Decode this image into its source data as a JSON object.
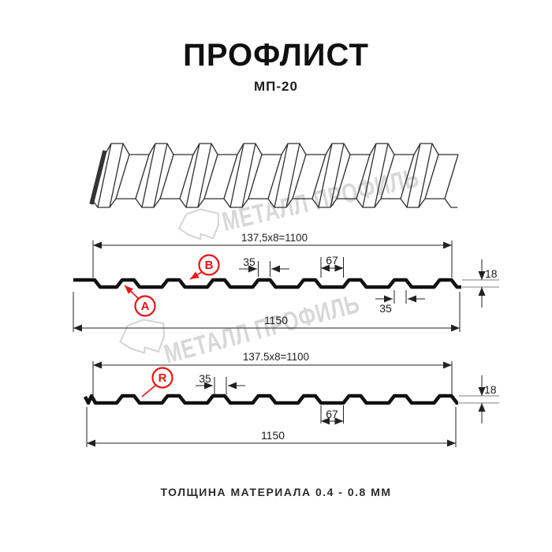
{
  "header": {
    "title": "ПРОФЛИСТ",
    "subtitle": "МП-20"
  },
  "watermark": {
    "text": "МЕТАЛЛ ПРОФИЛЬ"
  },
  "face_view": {
    "label_a": "A",
    "label_b": "B",
    "dim_modules": "137,5x8=1100",
    "dim_crest_width": "35",
    "dim_valley_width": "67",
    "dim_height": "18",
    "dim_crest_width_2": "35",
    "dim_total_width": "1150"
  },
  "reverse_view": {
    "label_r": "R",
    "dim_modules": "137.5x8=1100",
    "dim_crest_width": "35",
    "dim_valley_width": "67",
    "dim_height": "18",
    "dim_total_width": "1150"
  },
  "footer": {
    "note": "ТОЛЩИНА МАТЕРИАЛА 0.4 - 0.8 ММ"
  },
  "colors": {
    "accent_red": "#ec1313",
    "line_black": "#111111",
    "watermark_gray": "#d8d8d8",
    "background": "#ffffff"
  }
}
